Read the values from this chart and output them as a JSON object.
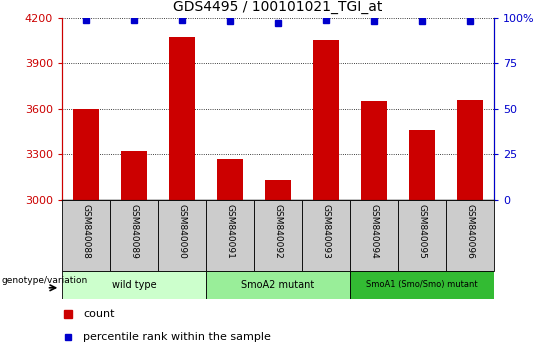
{
  "title": "GDS4495 / 100101021_TGI_at",
  "samples": [
    "GSM840088",
    "GSM840089",
    "GSM840090",
    "GSM840091",
    "GSM840092",
    "GSM840093",
    "GSM840094",
    "GSM840095",
    "GSM840096"
  ],
  "counts": [
    3600,
    3320,
    4070,
    3270,
    3130,
    4050,
    3650,
    3460,
    3660
  ],
  "percentile_ranks": [
    99,
    99,
    99,
    98,
    97,
    99,
    98,
    98,
    98
  ],
  "ylim_left": [
    3000,
    4200
  ],
  "ylim_right": [
    0,
    100
  ],
  "yticks_left": [
    3000,
    3300,
    3600,
    3900,
    4200
  ],
  "yticks_right": [
    0,
    25,
    50,
    75,
    100
  ],
  "groups": [
    {
      "label": "wild type",
      "n": 3,
      "color": "#ccffcc"
    },
    {
      "label": "SmoA2 mutant",
      "n": 3,
      "color": "#99ee99"
    },
    {
      "label": "SmoA1 (Smo/Smo) mutant",
      "n": 3,
      "color": "#33bb33"
    }
  ],
  "bar_color": "#cc0000",
  "marker_color": "#0000cc",
  "tick_color_left": "#cc0000",
  "tick_color_right": "#0000cc",
  "grid_color": "#000000",
  "sample_bg_color": "#cccccc",
  "genotype_label": "genotype/variation",
  "legend_count_label": "count",
  "legend_percentile_label": "percentile rank within the sample",
  "bar_width": 0.55,
  "fig_width": 5.4,
  "fig_height": 3.54,
  "dpi": 100
}
